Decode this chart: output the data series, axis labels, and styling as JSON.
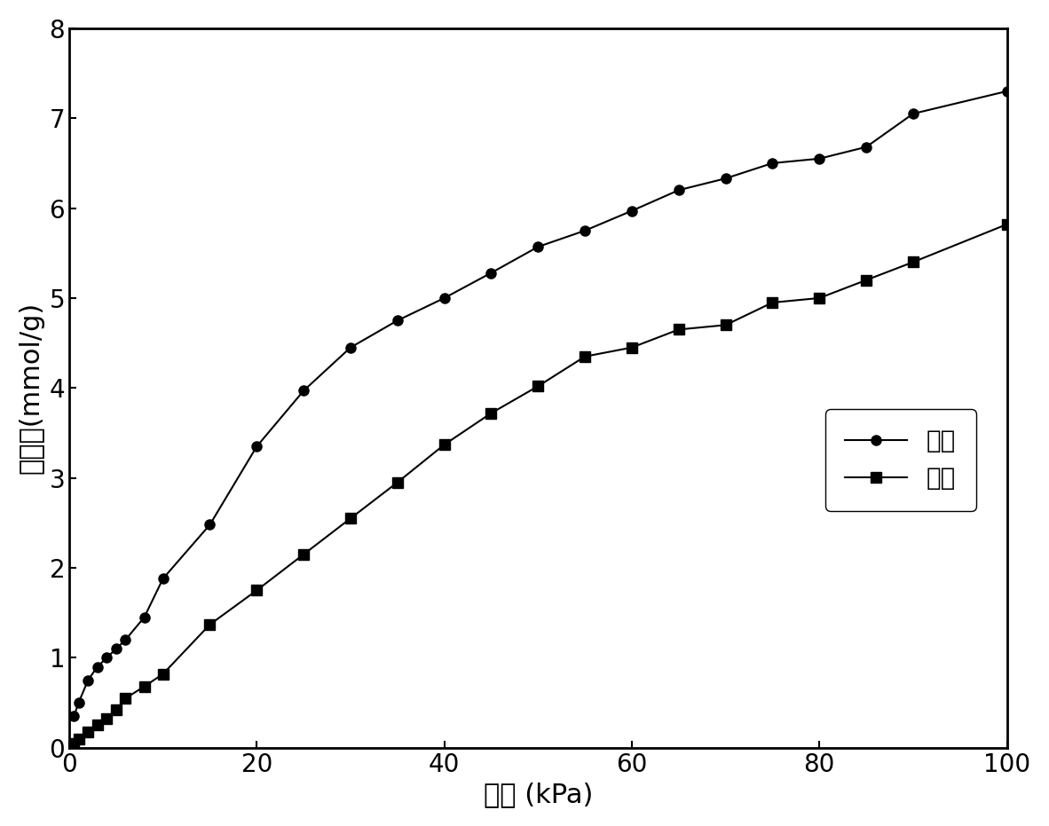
{
  "ethane_x": [
    0.5,
    1,
    2,
    3,
    4,
    5,
    6,
    8,
    10,
    15,
    20,
    25,
    30,
    35,
    40,
    45,
    50,
    55,
    60,
    65,
    70,
    75,
    80,
    85,
    90,
    100
  ],
  "ethane_y": [
    0.35,
    0.5,
    0.75,
    0.9,
    1.0,
    1.1,
    1.2,
    1.45,
    1.88,
    2.48,
    3.35,
    3.97,
    4.45,
    4.75,
    5.0,
    5.28,
    5.57,
    5.75,
    5.97,
    6.2,
    6.33,
    6.5,
    6.55,
    6.68,
    7.05,
    7.3
  ],
  "ethylene_x": [
    0.5,
    1,
    2,
    3,
    4,
    5,
    6,
    8,
    10,
    15,
    20,
    25,
    30,
    35,
    40,
    45,
    50,
    55,
    60,
    65,
    70,
    75,
    80,
    85,
    90,
    100
  ],
  "ethylene_y": [
    0.05,
    0.1,
    0.18,
    0.25,
    0.32,
    0.42,
    0.55,
    0.68,
    0.82,
    1.37,
    1.75,
    2.15,
    2.55,
    2.95,
    3.37,
    3.72,
    4.02,
    4.35,
    4.45,
    4.65,
    4.7,
    4.95,
    5.0,
    5.2,
    5.4,
    5.82
  ],
  "xlabel": "压力 (kPa)",
  "ylabel": "吸附量(mmol/g)",
  "label_ethane": "乙烷",
  "label_ethylene": "乙烯",
  "xlim": [
    0,
    100
  ],
  "ylim": [
    0,
    8
  ],
  "xticks": [
    0,
    20,
    40,
    60,
    80,
    100
  ],
  "yticks": [
    0,
    1,
    2,
    3,
    4,
    5,
    6,
    7,
    8
  ],
  "line_color": "#000000",
  "marker_circle": "o",
  "marker_square": "s",
  "markersize": 8,
  "linewidth": 1.5,
  "xlabel_fontsize": 22,
  "ylabel_fontsize": 22,
  "tick_fontsize": 20,
  "legend_fontsize": 20
}
